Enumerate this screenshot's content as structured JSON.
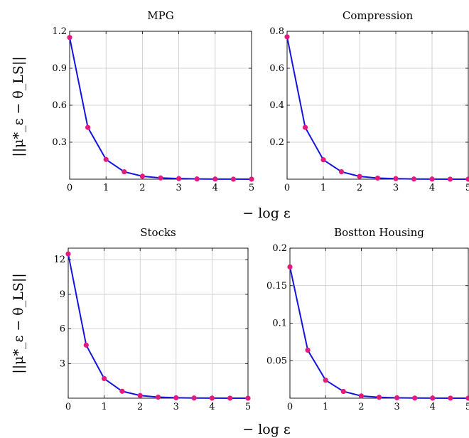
{
  "colors": {
    "line": "#1414e0",
    "marker": "#e6197d",
    "grid": "#c8c8c8"
  },
  "shared_labels": {
    "ylabel": "||μ*_ε − θ_LS||",
    "xlabel": "− log ε"
  },
  "chart_data": [
    {
      "type": "line",
      "title": "MPG",
      "x": [
        0,
        0.5,
        1,
        1.5,
        2,
        2.5,
        3,
        3.5,
        4,
        4.5,
        5
      ],
      "series": [
        {
          "values": [
            1.15,
            0.42,
            0.16,
            0.06,
            0.024,
            0.01,
            0.005,
            0.002,
            0.001,
            0.0005,
            0.0002
          ]
        }
      ],
      "xlim": [
        0,
        5
      ],
      "ylim": [
        0,
        1.2
      ],
      "xticks": [
        0,
        1,
        2,
        3,
        4,
        5
      ],
      "yticks": [
        0.3,
        0.6,
        0.9,
        1.2
      ],
      "ytick_labels": [
        "0.3",
        "0.6",
        "0.9",
        "1.2"
      ],
      "grid": true
    },
    {
      "type": "line",
      "title": "Compression",
      "x": [
        0,
        0.5,
        1,
        1.5,
        2,
        2.5,
        3,
        3.5,
        4,
        4.5,
        5
      ],
      "series": [
        {
          "values": [
            0.77,
            0.28,
            0.105,
            0.04,
            0.015,
            0.006,
            0.003,
            0.001,
            0.0005,
            0.0002,
            0.0001
          ]
        }
      ],
      "xlim": [
        0,
        5
      ],
      "ylim": [
        0,
        0.8
      ],
      "xticks": [
        0,
        1,
        2,
        3,
        4,
        5
      ],
      "yticks": [
        0.2,
        0.4,
        0.6,
        0.8
      ],
      "ytick_labels": [
        "0.2",
        "0.4",
        "0.6",
        "0.8"
      ],
      "grid": true
    },
    {
      "type": "line",
      "title": "Stocks",
      "x": [
        0,
        0.5,
        1,
        1.5,
        2,
        2.5,
        3,
        3.5,
        4,
        4.5,
        5
      ],
      "series": [
        {
          "values": [
            12.5,
            4.6,
            1.7,
            0.6,
            0.23,
            0.09,
            0.035,
            0.014,
            0.005,
            0.002,
            0.001
          ]
        }
      ],
      "xlim": [
        0,
        5
      ],
      "ylim": [
        0,
        13
      ],
      "xticks": [
        0,
        1,
        2,
        3,
        4,
        5
      ],
      "yticks": [
        3,
        6,
        9,
        12
      ],
      "ytick_labels": [
        "3",
        "6",
        "9",
        "12"
      ],
      "grid": true
    },
    {
      "type": "line",
      "title": "Bostton Housing",
      "x": [
        0,
        0.5,
        1,
        1.5,
        2,
        2.5,
        3,
        3.5,
        4,
        4.5,
        5
      ],
      "series": [
        {
          "values": [
            0.175,
            0.064,
            0.024,
            0.009,
            0.003,
            0.0012,
            0.0005,
            0.0002,
            0.0001,
            5e-05,
            2e-05
          ]
        }
      ],
      "xlim": [
        0,
        5
      ],
      "ylim": [
        0,
        0.2
      ],
      "xticks": [
        0,
        1,
        2,
        3,
        4,
        5
      ],
      "yticks": [
        0.05,
        0.1,
        0.15,
        0.2
      ],
      "ytick_labels": [
        "0.05",
        "0.1",
        "0.15",
        "0.2"
      ],
      "grid": true
    }
  ]
}
